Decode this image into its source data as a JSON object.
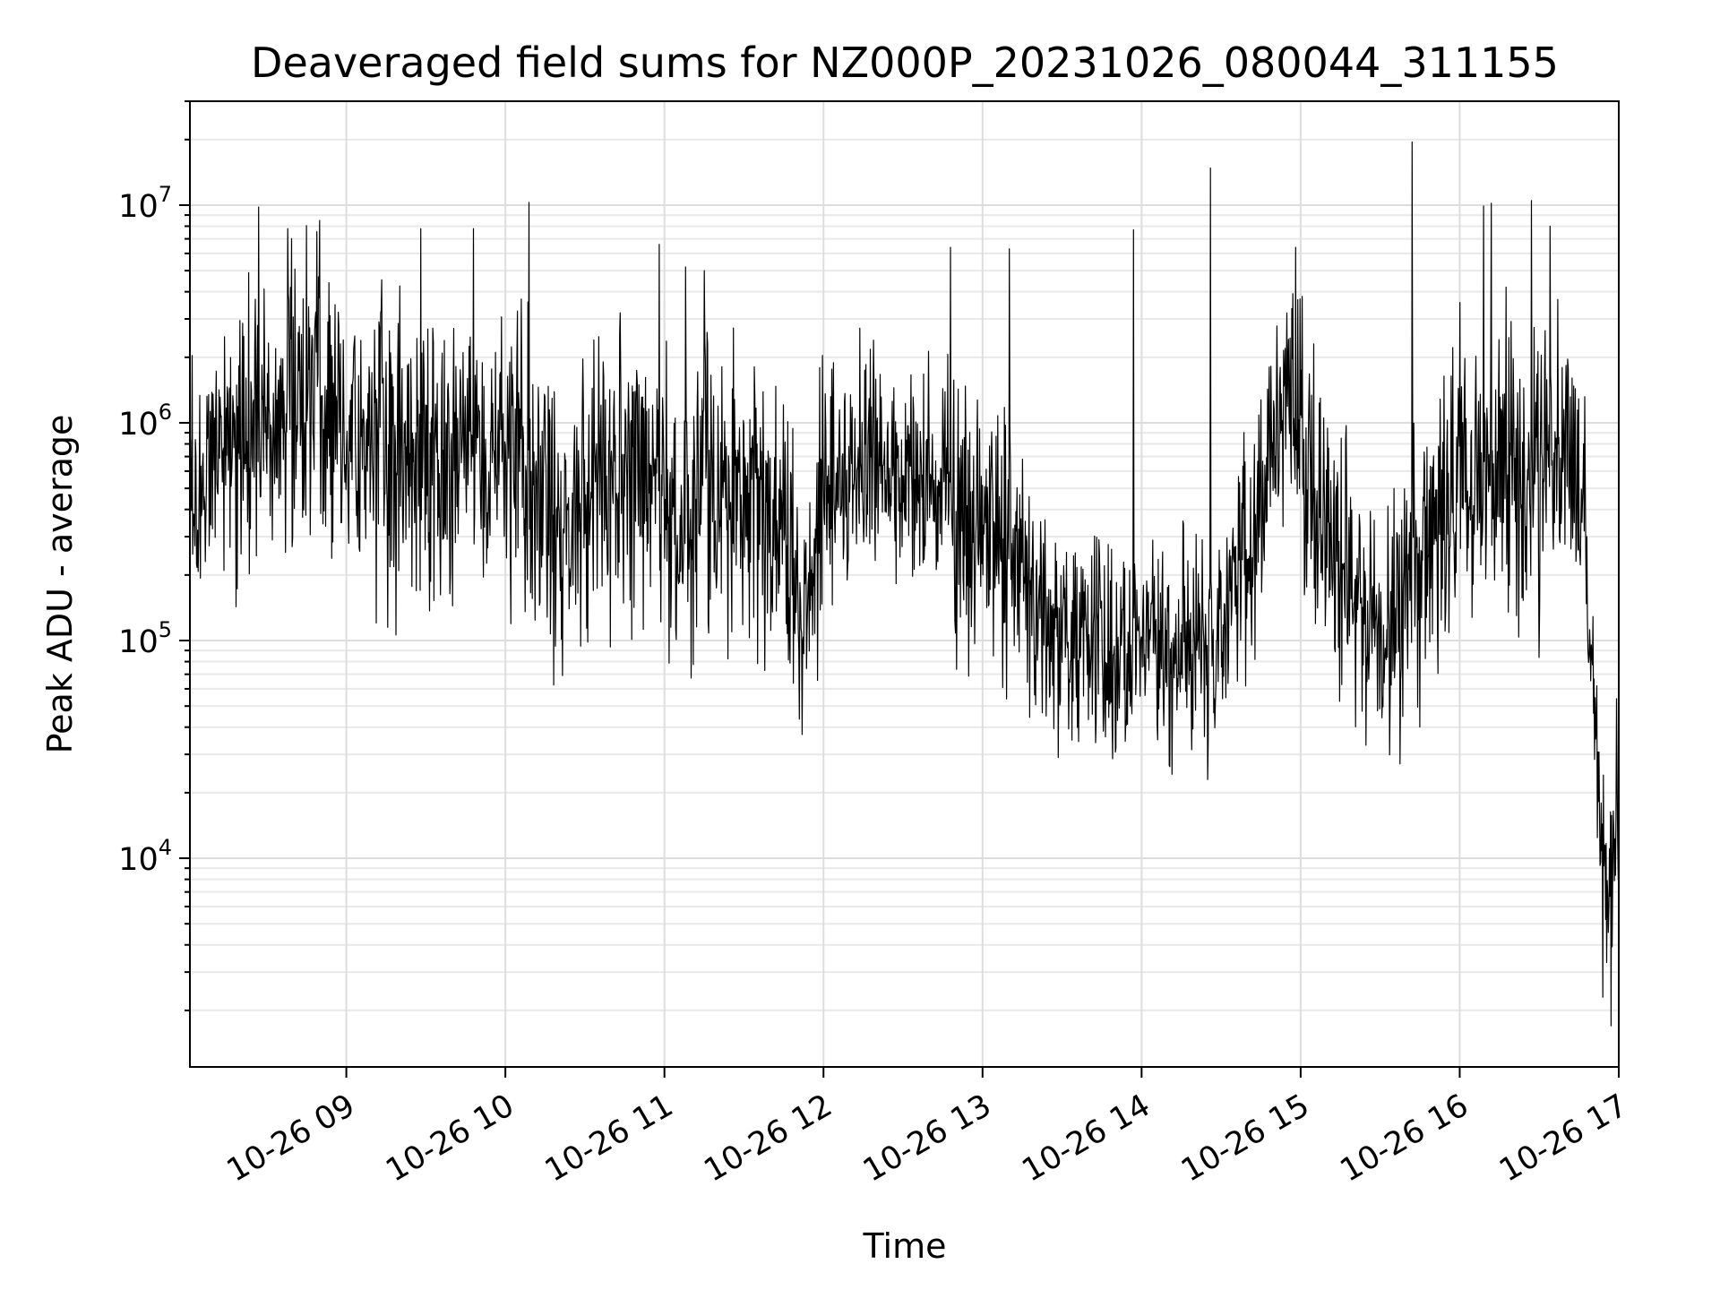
{
  "chart_data": {
    "type": "line",
    "title": "Deaveraged field sums for NZ000P_20231026_080044_311155",
    "xlabel": "Time",
    "ylabel": "Peak ADU - average",
    "x_range": [
      "2023-10-26 08:01",
      "2023-10-26 17:00"
    ],
    "y_range": [
      1100,
      30000000
    ],
    "y_scale": "log",
    "grid": true,
    "x_ticks": [
      {
        "value": "2023-10-26 09:00",
        "label": "10-26 09"
      },
      {
        "value": "2023-10-26 10:00",
        "label": "10-26 10"
      },
      {
        "value": "2023-10-26 11:00",
        "label": "10-26 11"
      },
      {
        "value": "2023-10-26 12:00",
        "label": "10-26 12"
      },
      {
        "value": "2023-10-26 13:00",
        "label": "10-26 13"
      },
      {
        "value": "2023-10-26 14:00",
        "label": "10-26 14"
      },
      {
        "value": "2023-10-26 15:00",
        "label": "10-26 15"
      },
      {
        "value": "2023-10-26 16:00",
        "label": "10-26 16"
      },
      {
        "value": "2023-10-26 17:00",
        "label": "10-26 17"
      }
    ],
    "y_ticks": [
      {
        "value": 10000,
        "base": "10",
        "exp": "4"
      },
      {
        "value": 100000,
        "base": "10",
        "exp": "5"
      },
      {
        "value": 1000000,
        "base": "10",
        "exp": "6"
      },
      {
        "value": 10000000,
        "base": "10",
        "exp": "7"
      }
    ],
    "series": [
      {
        "color": "#000000",
        "profile": {
          "x": [
            "2023-10-26 08:01",
            "2023-10-26 08:15",
            "2023-10-26 08:30",
            "2023-10-26 08:45",
            "2023-10-26 09:00",
            "2023-10-26 09:15",
            "2023-10-26 09:30",
            "2023-10-26 09:45",
            "2023-10-26 10:00",
            "2023-10-26 10:10",
            "2023-10-26 10:20",
            "2023-10-26 10:35",
            "2023-10-26 10:50",
            "2023-10-26 11:00",
            "2023-10-26 11:05",
            "2023-10-26 11:15",
            "2023-10-26 11:30",
            "2023-10-26 11:45",
            "2023-10-26 11:52",
            "2023-10-26 12:00",
            "2023-10-26 12:15",
            "2023-10-26 12:30",
            "2023-10-26 12:45",
            "2023-10-26 12:55",
            "2023-10-26 13:05",
            "2023-10-26 13:20",
            "2023-10-26 13:40",
            "2023-10-26 14:00",
            "2023-10-26 14:20",
            "2023-10-26 14:30",
            "2023-10-26 14:45",
            "2023-10-26 14:55",
            "2023-10-26 15:05",
            "2023-10-26 15:20",
            "2023-10-26 15:30",
            "2023-10-26 15:45",
            "2023-10-26 16:00",
            "2023-10-26 16:15",
            "2023-10-26 16:30",
            "2023-10-26 16:40",
            "2023-10-26 16:48",
            "2023-10-26 16:52",
            "2023-10-26 16:56",
            "2023-10-26 17:00"
          ],
          "median": [
            500000,
            800000,
            1200000,
            1300000,
            900000,
            800000,
            600000,
            700000,
            700000,
            500000,
            300000,
            500000,
            700000,
            500000,
            250000,
            500000,
            500000,
            400000,
            100000,
            400000,
            800000,
            500000,
            500000,
            300000,
            300000,
            150000,
            90000,
            90000,
            100000,
            120000,
            400000,
            1500000,
            600000,
            150000,
            100000,
            200000,
            500000,
            700000,
            600000,
            800000,
            300000,
            20000,
            6000,
            20000
          ],
          "spread": [
            3,
            3.5,
            4,
            4,
            4,
            4,
            4,
            3.5,
            4,
            4,
            4,
            4,
            4,
            4,
            3,
            4,
            4,
            3.5,
            3,
            3.5,
            3,
            3,
            3,
            4,
            4,
            3,
            3,
            3,
            3,
            3,
            3.5,
            3,
            4,
            4,
            3,
            4,
            4,
            4,
            4,
            3.5,
            3,
            2.5,
            2.5,
            2.5
          ]
        },
        "spikes": [
          {
            "x": "2023-10-26 08:27",
            "y": 9800000
          },
          {
            "x": "2023-10-26 08:38",
            "y": 7800000
          },
          {
            "x": "2023-10-26 08:50",
            "y": 8500000
          },
          {
            "x": "2023-10-26 09:28",
            "y": 7800000
          },
          {
            "x": "2023-10-26 09:48",
            "y": 7800000
          },
          {
            "x": "2023-10-26 10:09",
            "y": 10300000
          },
          {
            "x": "2023-10-26 10:58",
            "y": 6600000
          },
          {
            "x": "2023-10-26 11:08",
            "y": 5200000
          },
          {
            "x": "2023-10-26 11:15",
            "y": 5000000
          },
          {
            "x": "2023-10-26 12:48",
            "y": 6400000
          },
          {
            "x": "2023-10-26 13:10",
            "y": 6300000
          },
          {
            "x": "2023-10-26 13:57",
            "y": 7700000
          },
          {
            "x": "2023-10-26 14:26",
            "y": 14800000
          },
          {
            "x": "2023-10-26 14:58",
            "y": 6400000
          },
          {
            "x": "2023-10-26 15:42",
            "y": 19500000
          },
          {
            "x": "2023-10-26 16:09",
            "y": 9900000
          },
          {
            "x": "2023-10-26 16:12",
            "y": 10200000
          },
          {
            "x": "2023-10-26 16:27",
            "y": 10500000
          },
          {
            "x": "2023-10-26 16:34",
            "y": 8000000
          },
          {
            "x": "2023-10-26 14:25",
            "y": 23000
          },
          {
            "x": "2023-10-26 11:52",
            "y": 37000
          },
          {
            "x": "2023-10-26 16:57",
            "y": 1700
          },
          {
            "x": "2023-10-26 16:54",
            "y": 2300
          }
        ]
      }
    ]
  }
}
